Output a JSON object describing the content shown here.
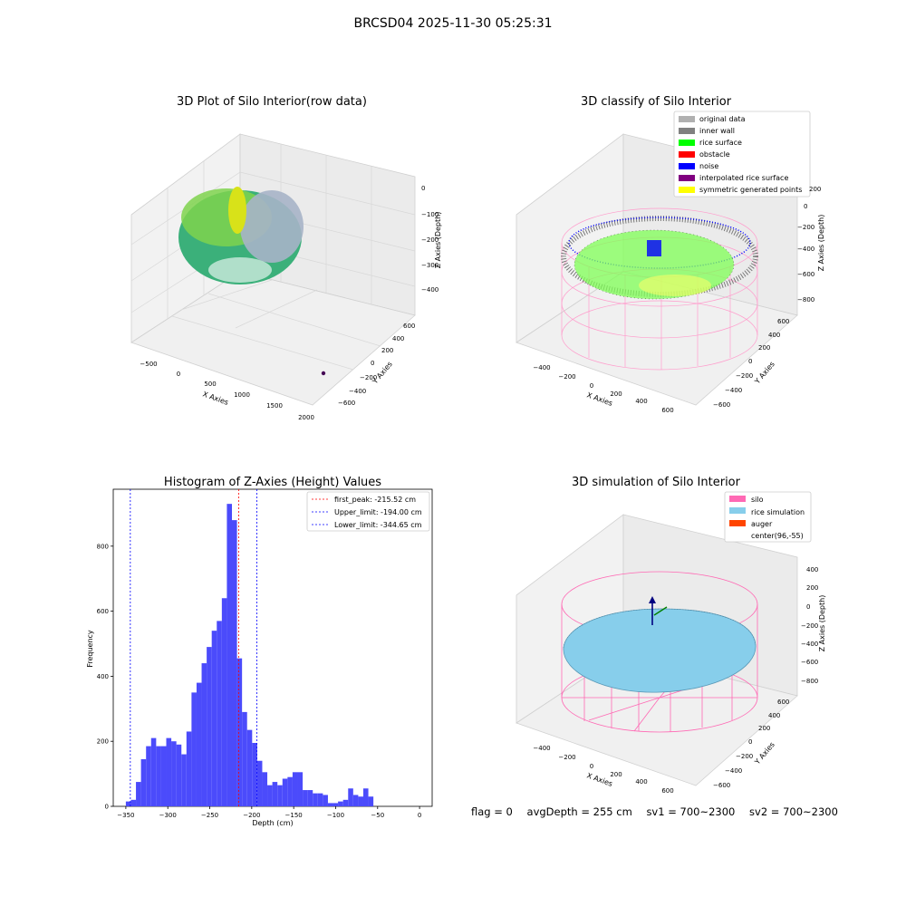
{
  "figure_title": "BRCSD04 2025-11-30 05:25:31",
  "footer": {
    "flag": "flag = 0",
    "avg_depth": "avgDepth = 255 cm",
    "sv1": "sv1 = 700~2300",
    "sv2": "sv2 = 700~2300"
  },
  "colors": {
    "histogram_bar": "#4b4bfb",
    "first_peak_line": "#ff0000",
    "limit_lines": "#0000ff",
    "silo": "#ff69b4",
    "rice_simulation": "#87ceeb",
    "auger": "#ff4500",
    "original_data": "#b0b0b0",
    "inner_wall": "#808080",
    "rice_surface": "#00ff00",
    "obstacle": "#ff0000",
    "noise": "#0000ff",
    "interpolated_rice_surface": "#800080",
    "symmetric_generated_points": "#ffff00"
  },
  "chart_data": [
    {
      "type": "scatter",
      "title": "3D Plot of Silo Interior(row data)",
      "xlabel": "X Axies",
      "ylabel": "Y Axies",
      "zlabel": "Z Axies (Depth)",
      "x_ticks": [
        "−500",
        "0",
        "500",
        "1000",
        "1500",
        "2000"
      ],
      "y_ticks": [
        "−600",
        "−400",
        "−200",
        "0",
        "200",
        "400",
        "600"
      ],
      "z_ticks": [
        "0",
        "−100",
        "−200",
        "−300",
        "−400"
      ],
      "colormap": "viridis"
    },
    {
      "type": "scatter",
      "title": "3D classify of Silo Interior",
      "xlabel": "X Axies",
      "ylabel": "Y Axies",
      "zlabel": "Z Axies (Depth)",
      "x_ticks": [
        "−400",
        "−200",
        "0",
        "200",
        "400",
        "600"
      ],
      "y_ticks": [
        "−600",
        "−400",
        "−200",
        "0",
        "200",
        "400",
        "600"
      ],
      "z_ticks": [
        "200",
        "0",
        "−200",
        "−400",
        "−600",
        "−800"
      ],
      "legend": [
        "original data",
        "inner wall",
        "rice surface",
        "obstacle",
        "noise",
        "interpolated rice surface",
        "symmetric generated points"
      ],
      "legend_colors": [
        "#b0b0b0",
        "#808080",
        "#00ff00",
        "#ff0000",
        "#0000ff",
        "#800080",
        "#ffff00"
      ],
      "legend_position": "upper-right"
    },
    {
      "type": "bar",
      "title": "Histogram of Z-Axies (Height) Values",
      "xlabel": "Depth (cm)",
      "ylabel": "Frequency",
      "xlim": [
        -365,
        15
      ],
      "ylim": [
        0,
        975
      ],
      "x_ticks": [
        -350,
        -300,
        -250,
        -200,
        -150,
        -100,
        -50,
        0
      ],
      "x_tick_labels": [
        "−350",
        "−300",
        "−250",
        "−200",
        "−150",
        "−100",
        "−50",
        "0"
      ],
      "y_ticks": [
        0,
        200,
        400,
        600,
        800
      ],
      "y_tick_labels": [
        "0",
        "200",
        "400",
        "600",
        "800"
      ],
      "bin_width": 6.02,
      "bin_start": -350.0,
      "values": [
        15,
        20,
        75,
        145,
        185,
        210,
        185,
        185,
        210,
        200,
        190,
        160,
        230,
        350,
        380,
        440,
        490,
        540,
        570,
        640,
        930,
        880,
        455,
        290,
        235,
        195,
        140,
        105,
        65,
        75,
        65,
        85,
        90,
        105,
        105,
        50,
        50,
        40,
        40,
        35,
        10,
        10,
        15,
        20,
        55,
        35,
        30,
        55,
        30
      ],
      "lines": [
        {
          "label": "first_peak: -215.52 cm",
          "x": -215.52,
          "color": "#ff0000"
        },
        {
          "label": "Upper_limit: -194.00 cm",
          "x": -194.0,
          "color": "#0000ff"
        },
        {
          "label": "Lower_limit: -344.65 cm",
          "x": -344.65,
          "color": "#0000ff"
        }
      ],
      "legend_position": "upper-right"
    },
    {
      "type": "scatter",
      "title": "3D simulation of Silo Interior",
      "xlabel": "X Axies",
      "ylabel": "Y Axies",
      "zlabel": "Z Axies (Depth)",
      "x_ticks": [
        "−400",
        "−200",
        "0",
        "200",
        "400",
        "600"
      ],
      "y_ticks": [
        "−600",
        "−400",
        "−200",
        "0",
        "200",
        "400",
        "600"
      ],
      "z_ticks": [
        "400",
        "200",
        "0",
        "−200",
        "−400",
        "−600",
        "−800"
      ],
      "legend": [
        "silo",
        "rice simulation",
        "auger",
        "center(96,-55)"
      ],
      "legend_colors": [
        "#ff69b4",
        "#87ceeb",
        "#ff4500",
        ""
      ],
      "legend_position": "upper-right"
    }
  ]
}
